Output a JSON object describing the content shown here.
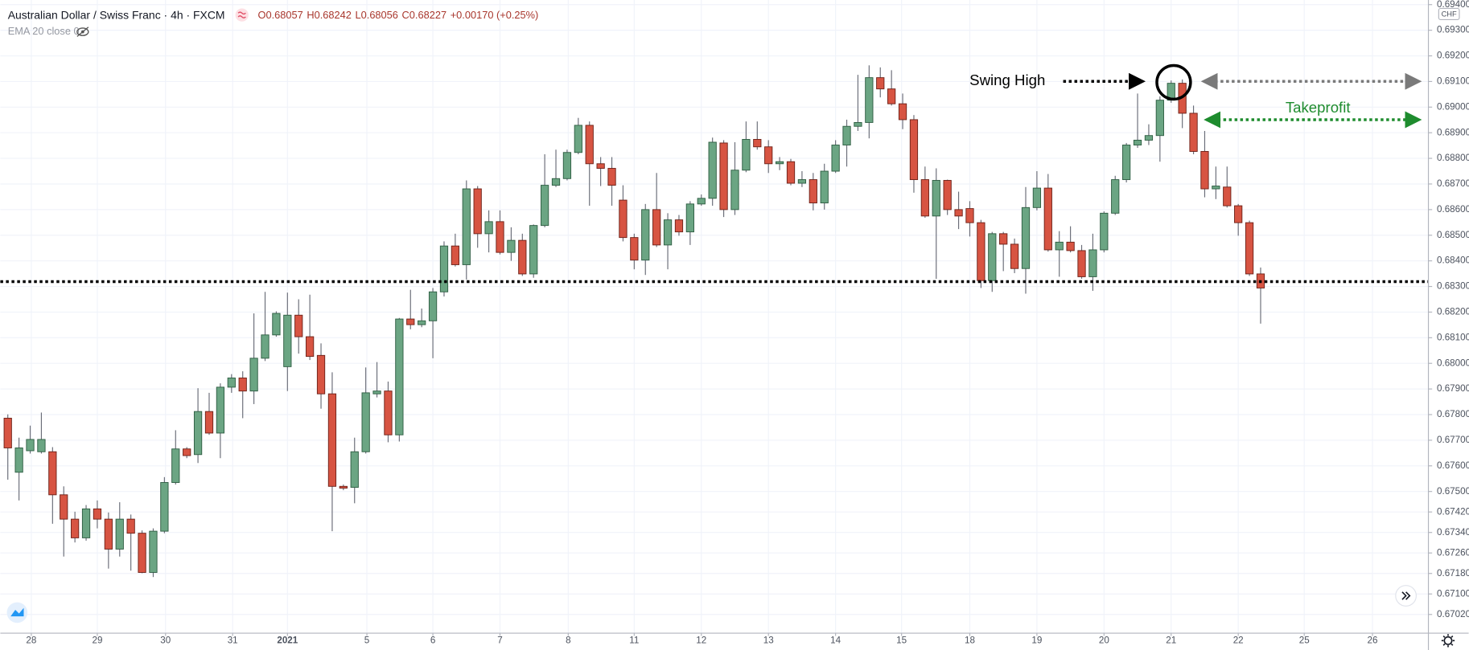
{
  "chart_data": {
    "type": "candlestick",
    "title": "Australian Dollar / Swiss Franc · 4h · FXCM",
    "ohlc_text": [
      "O0.68057",
      "H0.68242",
      "L0.68056",
      "C0.68227",
      "+0.00170 (+0.25%)"
    ],
    "indicator": "EMA 20 close 0",
    "currency": "CHF",
    "up_color": "#6ba583",
    "down_color": "#d75442",
    "ylim": [
      0.66947,
      0.69418
    ],
    "yticks": [
      {
        "value": 0.694,
        "label": "0.69400"
      },
      {
        "value": 0.693,
        "label": "0.69300"
      },
      {
        "value": 0.692,
        "label": "0.69200"
      },
      {
        "value": 0.691,
        "label": "0.69100"
      },
      {
        "value": 0.69,
        "label": "0.69000"
      },
      {
        "value": 0.689,
        "label": "0.68900"
      },
      {
        "value": 0.688,
        "label": "0.68800"
      },
      {
        "value": 0.687,
        "label": "0.68700"
      },
      {
        "value": 0.686,
        "label": "0.68600"
      },
      {
        "value": 0.685,
        "label": "0.68500"
      },
      {
        "value": 0.684,
        "label": "0.68400"
      },
      {
        "value": 0.683,
        "label": "0.68300"
      },
      {
        "value": 0.682,
        "label": "0.68200"
      },
      {
        "value": 0.681,
        "label": "0.68100"
      },
      {
        "value": 0.68,
        "label": "0.68000"
      },
      {
        "value": 0.679,
        "label": "0.67900"
      },
      {
        "value": 0.678,
        "label": "0.67800"
      },
      {
        "value": 0.677,
        "label": "0.67700"
      },
      {
        "value": 0.676,
        "label": "0.67600"
      },
      {
        "value": 0.675,
        "label": "0.67500"
      },
      {
        "value": 0.6742,
        "label": "0.67420"
      },
      {
        "value": 0.6734,
        "label": "0.67340"
      },
      {
        "value": 0.6726,
        "label": "0.67260"
      },
      {
        "value": 0.6718,
        "label": "0.67180"
      },
      {
        "value": 0.671,
        "label": "0.67100"
      },
      {
        "value": 0.6702,
        "label": "0.67020"
      }
    ],
    "xlim": [
      -0.67,
      127.0
    ],
    "xticks": [
      {
        "value": 2.1,
        "label": "28"
      },
      {
        "value": 8.0,
        "label": "29"
      },
      {
        "value": 14.1,
        "label": "30"
      },
      {
        "value": 20.1,
        "label": "31"
      },
      {
        "value": 25.0,
        "label": "2021"
      },
      {
        "value": 32.1,
        "label": "5"
      },
      {
        "value": 38.0,
        "label": "6"
      },
      {
        "value": 44.0,
        "label": "7"
      },
      {
        "value": 50.1,
        "label": "8"
      },
      {
        "value": 56.0,
        "label": "11"
      },
      {
        "value": 62.0,
        "label": "12"
      },
      {
        "value": 68.0,
        "label": "13"
      },
      {
        "value": 74.0,
        "label": "14"
      },
      {
        "value": 79.9,
        "label": "15"
      },
      {
        "value": 86.0,
        "label": "18"
      },
      {
        "value": 92.0,
        "label": "19"
      },
      {
        "value": 98.0,
        "label": "20"
      },
      {
        "value": 104.0,
        "label": "21"
      },
      {
        "value": 110.0,
        "label": "22"
      },
      {
        "value": 115.9,
        "label": "25"
      },
      {
        "value": 122.0,
        "label": "26"
      }
    ],
    "grid": true,
    "level": {
      "value": 0.68319,
      "color": "#000000"
    },
    "annotations": {
      "swing_high": "Swing High",
      "takeprofit": "Takeprofit",
      "takeprofit_color": "#1e8c2e"
    },
    "candles": [
      [
        0.67786,
        0.67801,
        0.67546,
        0.6767
      ],
      [
        0.67575,
        0.6771,
        0.67465,
        0.6767
      ],
      [
        0.67659,
        0.67757,
        0.67648,
        0.67703
      ],
      [
        0.67655,
        0.67808,
        0.67648,
        0.67703
      ],
      [
        0.67655,
        0.67673,
        0.67374,
        0.67487
      ],
      [
        0.67487,
        0.6752,
        0.67246,
        0.67392
      ],
      [
        0.67392,
        0.67421,
        0.67301,
        0.67319
      ],
      [
        0.67319,
        0.67447,
        0.67308,
        0.67432
      ],
      [
        0.67432,
        0.67465,
        0.67356,
        0.67392
      ],
      [
        0.67392,
        0.67418,
        0.67199,
        0.67275
      ],
      [
        0.67275,
        0.67458,
        0.67246,
        0.67392
      ],
      [
        0.67392,
        0.6741,
        0.67191,
        0.67337
      ],
      [
        0.67337,
        0.67348,
        0.67181,
        0.67184
      ],
      [
        0.67184,
        0.67356,
        0.67166,
        0.67345
      ],
      [
        0.67345,
        0.67556,
        0.67337,
        0.67535
      ],
      [
        0.67535,
        0.67739,
        0.67527,
        0.67666
      ],
      [
        0.67666,
        0.67673,
        0.6763,
        0.6764
      ],
      [
        0.67644,
        0.67903,
        0.67611,
        0.67812
      ],
      [
        0.67812,
        0.67885,
        0.67721,
        0.67728
      ],
      [
        0.67728,
        0.67922,
        0.6763,
        0.67907
      ],
      [
        0.67907,
        0.67958,
        0.67885,
        0.67943
      ],
      [
        0.67943,
        0.67969,
        0.67786,
        0.67892
      ],
      [
        0.67892,
        0.68195,
        0.67841,
        0.6802
      ],
      [
        0.6802,
        0.68279,
        0.68009,
        0.68111
      ],
      [
        0.68111,
        0.68203,
        0.68104,
        0.68195
      ],
      [
        0.67987,
        0.68276,
        0.67892,
        0.68188
      ],
      [
        0.68188,
        0.6825,
        0.68038,
        0.68104
      ],
      [
        0.68104,
        0.68268,
        0.68013,
        0.68027
      ],
      [
        0.68031,
        0.68078,
        0.67823,
        0.67881
      ],
      [
        0.67881,
        0.67965,
        0.67345,
        0.6752
      ],
      [
        0.6752,
        0.67527,
        0.67505,
        0.67513
      ],
      [
        0.67516,
        0.6771,
        0.67454,
        0.67655
      ],
      [
        0.67655,
        0.67984,
        0.67648,
        0.67885
      ],
      [
        0.67881,
        0.68005,
        0.67867,
        0.67892
      ],
      [
        0.67892,
        0.67929,
        0.67692,
        0.67721
      ],
      [
        0.67721,
        0.68177,
        0.67695,
        0.68173
      ],
      [
        0.68173,
        0.68287,
        0.68133,
        0.68151
      ],
      [
        0.68151,
        0.68214,
        0.68141,
        0.68166
      ],
      [
        0.68166,
        0.68294,
        0.6802,
        0.68279
      ],
      [
        0.68279,
        0.68476,
        0.68261,
        0.68458
      ],
      [
        0.68458,
        0.68506,
        0.68378,
        0.68385
      ],
      [
        0.68385,
        0.68714,
        0.68327,
        0.68681
      ],
      [
        0.68681,
        0.68692,
        0.68451,
        0.68506
      ],
      [
        0.68506,
        0.68597,
        0.68433,
        0.68553
      ],
      [
        0.68553,
        0.68597,
        0.68425,
        0.68433
      ],
      [
        0.68433,
        0.68531,
        0.684,
        0.6848
      ],
      [
        0.6848,
        0.68506,
        0.68341,
        0.68349
      ],
      [
        0.68349,
        0.68542,
        0.68334,
        0.68538
      ],
      [
        0.68538,
        0.68816,
        0.68531,
        0.68695
      ],
      [
        0.68695,
        0.68834,
        0.68688,
        0.68721
      ],
      [
        0.68721,
        0.68834,
        0.68714,
        0.68823
      ],
      [
        0.68823,
        0.68958,
        0.68816,
        0.68929
      ],
      [
        0.68929,
        0.68944,
        0.68615,
        0.68779
      ],
      [
        0.68779,
        0.68805,
        0.68692,
        0.68761
      ],
      [
        0.68761,
        0.68805,
        0.68615,
        0.68695
      ],
      [
        0.68637,
        0.68695,
        0.68476,
        0.68491
      ],
      [
        0.68491,
        0.68506,
        0.68367,
        0.68403
      ],
      [
        0.68403,
        0.68622,
        0.68345,
        0.686
      ],
      [
        0.686,
        0.68743,
        0.68454,
        0.68462
      ],
      [
        0.68462,
        0.68586,
        0.68367,
        0.6856
      ],
      [
        0.6856,
        0.68579,
        0.68498,
        0.68513
      ],
      [
        0.68513,
        0.68633,
        0.68462,
        0.68622
      ],
      [
        0.68622,
        0.68659,
        0.68615,
        0.68644
      ],
      [
        0.68644,
        0.68881,
        0.68615,
        0.68863
      ],
      [
        0.6886,
        0.68871,
        0.68571,
        0.686
      ],
      [
        0.686,
        0.68863,
        0.68579,
        0.68754
      ],
      [
        0.68754,
        0.68944,
        0.68746,
        0.68874
      ],
      [
        0.68874,
        0.68944,
        0.68834,
        0.68845
      ],
      [
        0.68845,
        0.68871,
        0.68743,
        0.68779
      ],
      [
        0.68779,
        0.68805,
        0.68754,
        0.68787
      ],
      [
        0.68787,
        0.68798,
        0.68695,
        0.68703
      ],
      [
        0.68703,
        0.6875,
        0.68688,
        0.68717
      ],
      [
        0.68717,
        0.68743,
        0.68597,
        0.68626
      ],
      [
        0.68626,
        0.68779,
        0.686,
        0.6875
      ],
      [
        0.6875,
        0.68871,
        0.68743,
        0.68852
      ],
      [
        0.68852,
        0.68951,
        0.68768,
        0.68925
      ],
      [
        0.68925,
        0.69126,
        0.68907,
        0.6894
      ],
      [
        0.6894,
        0.69163,
        0.68878,
        0.69115
      ],
      [
        0.69115,
        0.69155,
        0.69038,
        0.69071
      ],
      [
        0.69071,
        0.69144,
        0.69006,
        0.69013
      ],
      [
        0.69013,
        0.69053,
        0.68914,
        0.68951
      ],
      [
        0.68951,
        0.68969,
        0.68666,
        0.68717
      ],
      [
        0.68717,
        0.68768,
        0.68568,
        0.68575
      ],
      [
        0.68575,
        0.68761,
        0.6833,
        0.68714
      ],
      [
        0.68714,
        0.68717,
        0.68579,
        0.686
      ],
      [
        0.686,
        0.6867,
        0.68524,
        0.68575
      ],
      [
        0.68604,
        0.68633,
        0.68495,
        0.68549
      ],
      [
        0.68549,
        0.6856,
        0.68294,
        0.68323
      ],
      [
        0.68323,
        0.68513,
        0.68279,
        0.68506
      ],
      [
        0.68506,
        0.68513,
        0.6836,
        0.68465
      ],
      [
        0.68465,
        0.68487,
        0.68352,
        0.6837
      ],
      [
        0.6837,
        0.68688,
        0.68272,
        0.68608
      ],
      [
        0.68608,
        0.6875,
        0.68597,
        0.68684
      ],
      [
        0.68684,
        0.68739,
        0.68436,
        0.68443
      ],
      [
        0.68443,
        0.68516,
        0.68338,
        0.68473
      ],
      [
        0.68473,
        0.68535,
        0.68433,
        0.6844
      ],
      [
        0.6844,
        0.68462,
        0.6833,
        0.68338
      ],
      [
        0.68338,
        0.68506,
        0.68283,
        0.68443
      ],
      [
        0.68443,
        0.68593,
        0.68433,
        0.68586
      ],
      [
        0.68586,
        0.68732,
        0.68579,
        0.68717
      ],
      [
        0.68717,
        0.6886,
        0.68706,
        0.68852
      ],
      [
        0.68852,
        0.69053,
        0.68841,
        0.68871
      ],
      [
        0.68871,
        0.68933,
        0.68852,
        0.68889
      ],
      [
        0.68889,
        0.69042,
        0.68787,
        0.69027
      ],
      [
        0.69027,
        0.69104,
        0.69017,
        0.69093
      ],
      [
        0.69093,
        0.69108,
        0.68918,
        0.68976
      ],
      [
        0.68976,
        0.69006,
        0.68816,
        0.68827
      ],
      [
        0.68827,
        0.68907,
        0.68648,
        0.68681
      ],
      [
        0.68681,
        0.68768,
        0.68641,
        0.68692
      ],
      [
        0.68688,
        0.68768,
        0.68608,
        0.68615
      ],
      [
        0.68615,
        0.68622,
        0.68498,
        0.68549
      ],
      [
        0.68549,
        0.68557,
        0.68341,
        0.68349
      ],
      [
        0.68349,
        0.68374,
        0.68155,
        0.68294
      ]
    ]
  }
}
